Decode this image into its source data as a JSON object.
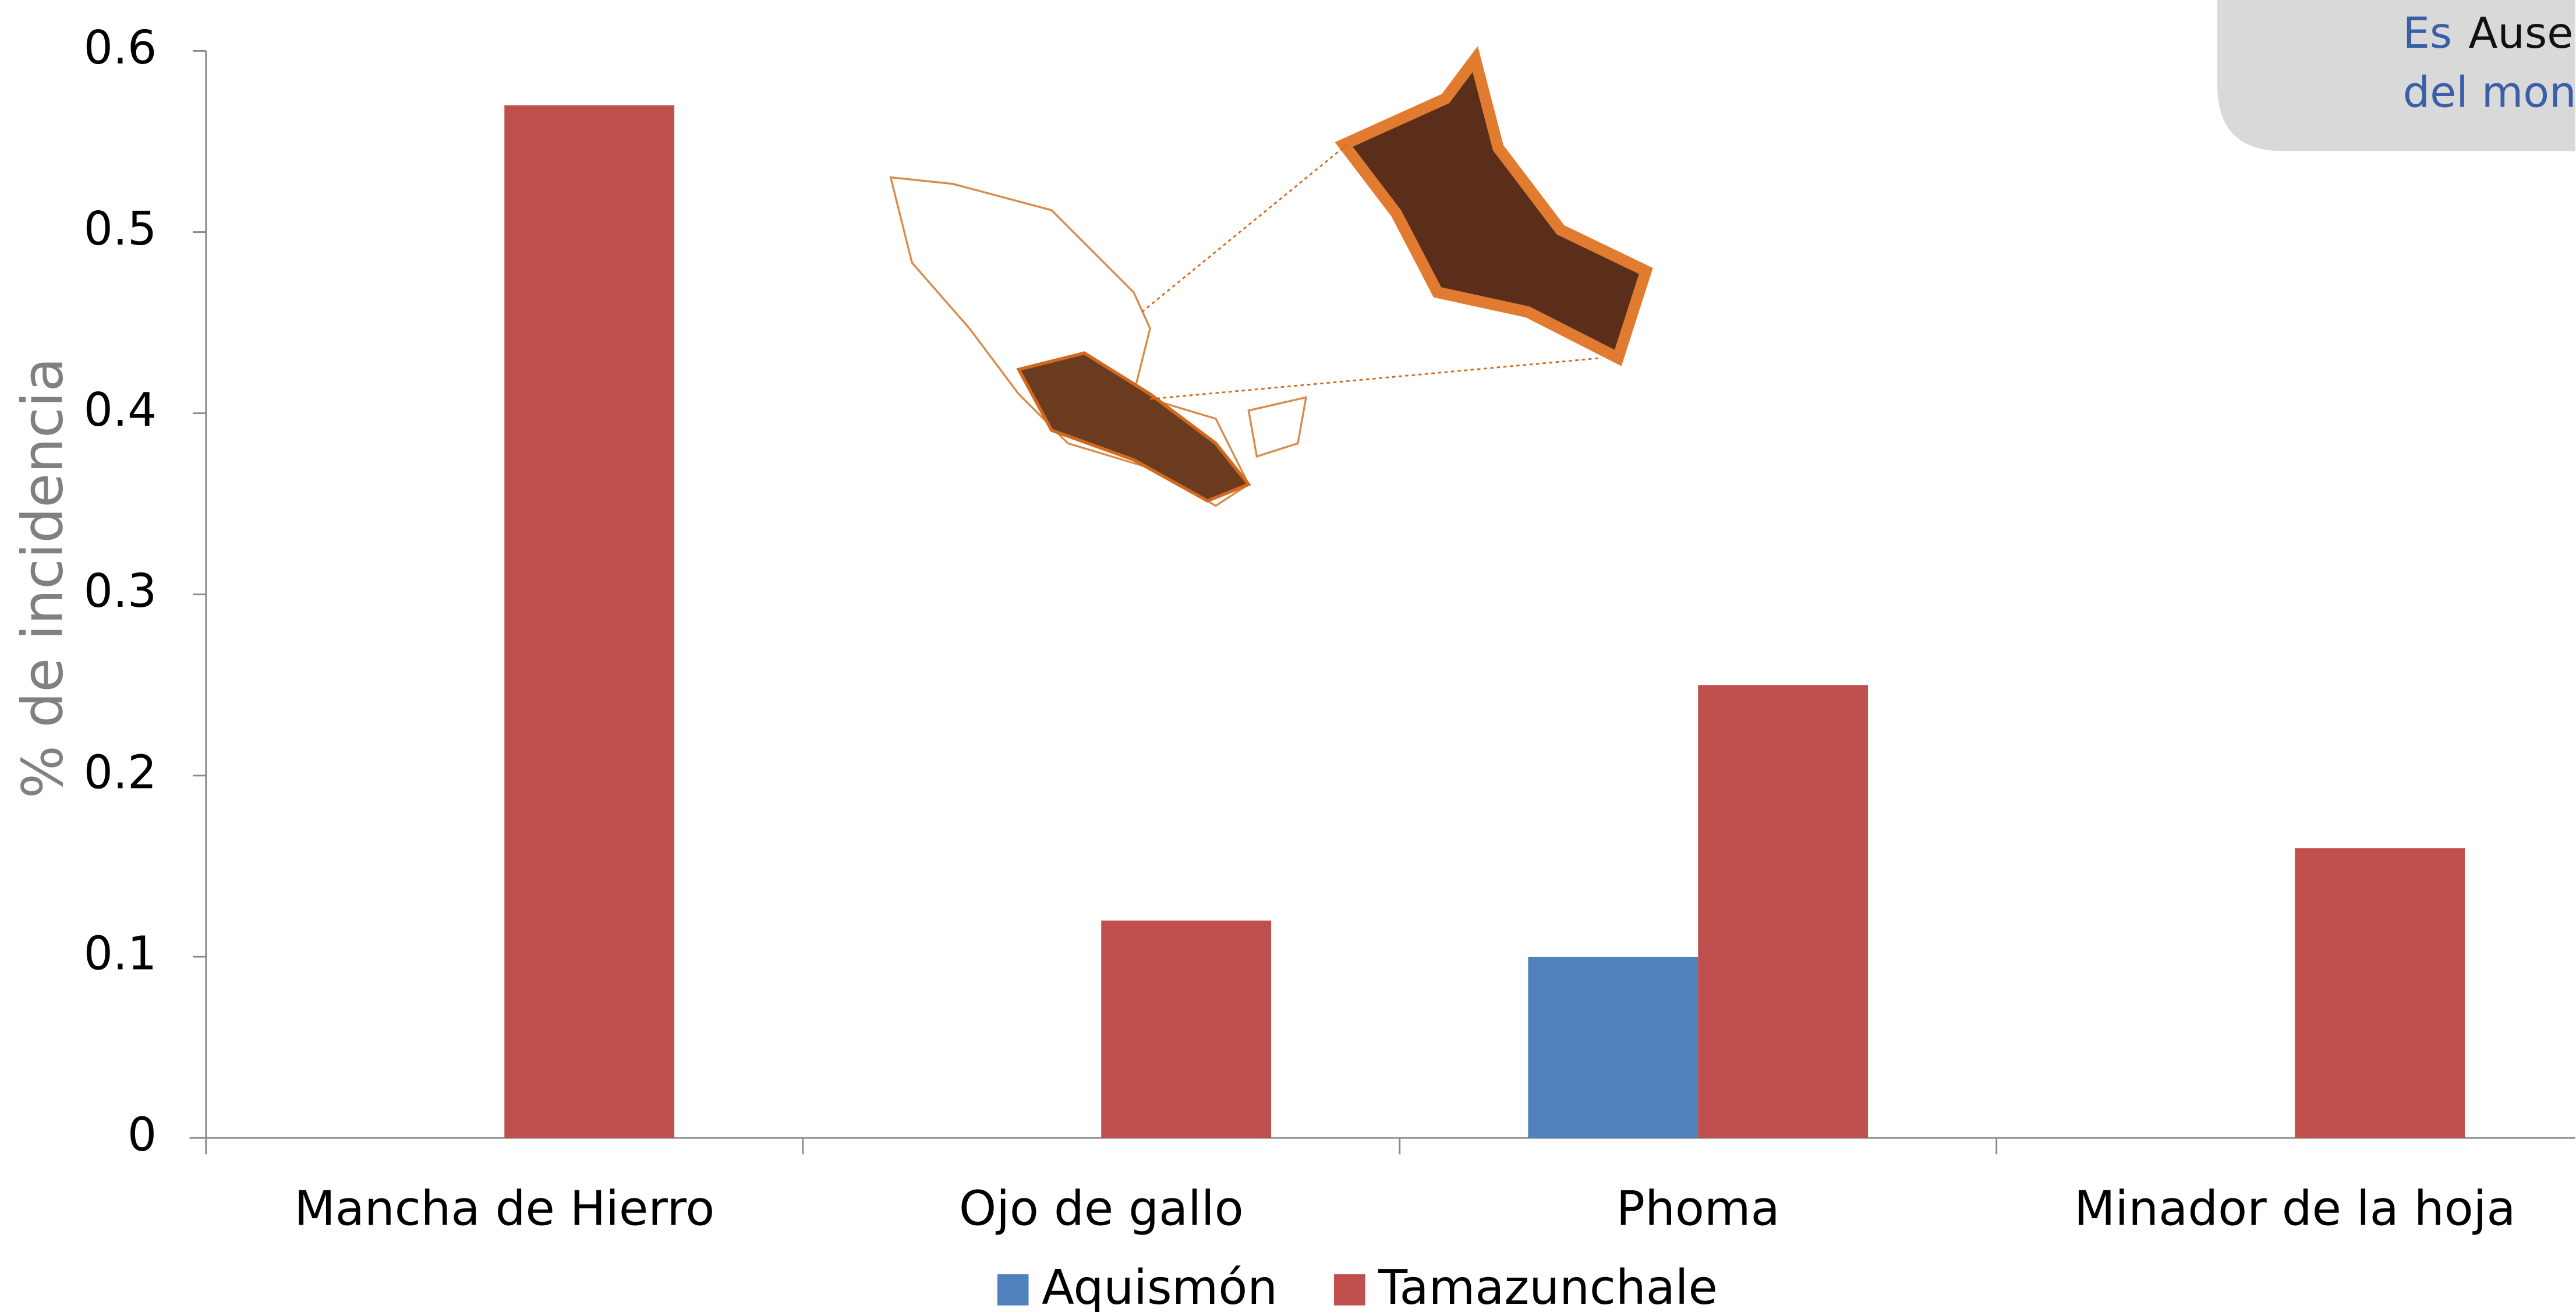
{
  "chart_data": {
    "type": "bar",
    "y_label": "% de incidencia",
    "categories": [
      "Mancha de Hierro",
      "Ojo de gallo",
      "Phoma",
      "Minador de la hoja"
    ],
    "series": [
      {
        "name": "Aquismón",
        "color": "#4f81bd",
        "values": [
          0,
          0,
          0.1,
          0
        ]
      },
      {
        "name": "Tamazunchale",
        "color": "#c0504d",
        "values": [
          0.57,
          0.12,
          0.25,
          0.16
        ]
      }
    ],
    "ylim": [
      0,
      0.6
    ],
    "yticks": [
      0,
      0.1,
      0.2,
      0.3,
      0.4,
      0.5,
      0.6
    ],
    "grid": false,
    "legend": "bottom",
    "annotation": {
      "line1_a": "Es",
      "line1_b": "Ause",
      "line2": "del mon"
    }
  }
}
